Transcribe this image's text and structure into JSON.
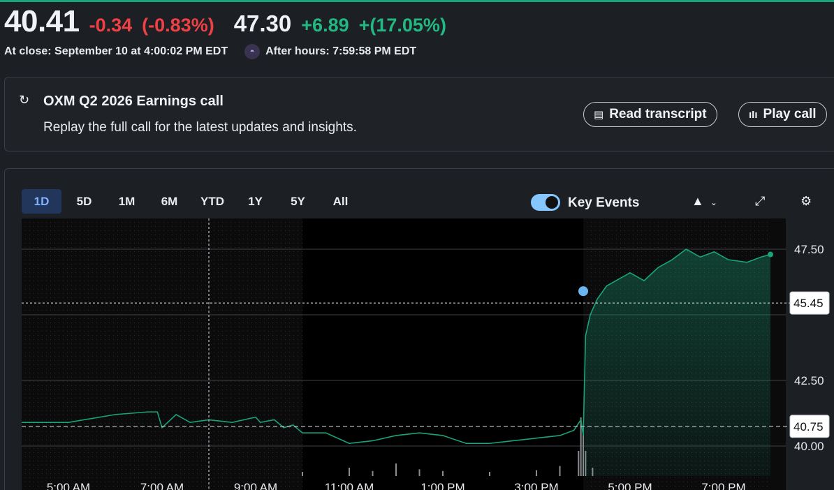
{
  "quote": {
    "price": "40.41",
    "change": "-0.34",
    "change_pct": "(-0.83%)",
    "after_hours_price": "47.30",
    "after_hours_change": "+6.89",
    "after_hours_change_pct": "+(17.05%)",
    "close_label": "At close: September 10 at 4:00:02 PM EDT",
    "after_hours_label": "After hours: 7:59:58 PM EDT"
  },
  "earnings_card": {
    "title": "OXM Q2 2026 Earnings call",
    "subtitle": "Replay the full call for the latest updates and insights.",
    "read_transcript": "Read transcript",
    "play_call": "Play call"
  },
  "toolbar": {
    "ranges": [
      "1D",
      "5D",
      "1M",
      "6M",
      "YTD",
      "1Y",
      "5Y",
      "All"
    ],
    "active_range": "1D",
    "key_events_label": "Key Events",
    "key_events_on": true
  },
  "colors": {
    "up": "#21b881",
    "down": "#ef4044",
    "line": "#1aa37a",
    "accent": "#7fb2ff"
  },
  "chart_data": {
    "type": "line",
    "x_ticks": [
      "5:00 AM",
      "7:00 AM",
      "9:00 AM",
      "11:00 AM",
      "1:00 PM",
      "3:00 PM",
      "5:00 PM",
      "7:00 PM"
    ],
    "y_ticks": [
      "47.50",
      "42.50",
      "40.00"
    ],
    "y_range": [
      39.0,
      48.5
    ],
    "prev_close_label": "40.75",
    "crosshair_label": "45.45",
    "series": [
      {
        "values": [
          [
            4.0,
            40.9
          ],
          [
            5.0,
            40.9
          ],
          [
            6.0,
            41.2
          ],
          [
            6.7,
            41.3
          ],
          [
            6.9,
            41.3
          ],
          [
            7.0,
            40.7
          ],
          [
            7.3,
            41.2
          ],
          [
            7.6,
            40.9
          ],
          [
            8.0,
            41.0
          ],
          [
            8.5,
            40.9
          ],
          [
            9.0,
            41.1
          ],
          [
            9.1,
            40.9
          ],
          [
            9.4,
            41.0
          ],
          [
            9.6,
            40.7
          ],
          [
            9.8,
            40.8
          ],
          [
            10.0,
            40.5
          ],
          [
            10.5,
            40.5
          ],
          [
            11.0,
            40.1
          ],
          [
            11.5,
            40.2
          ],
          [
            12.0,
            40.4
          ],
          [
            12.5,
            40.5
          ],
          [
            13.0,
            40.4
          ],
          [
            13.5,
            40.1
          ],
          [
            14.0,
            40.1
          ],
          [
            14.5,
            40.2
          ],
          [
            15.0,
            40.3
          ],
          [
            15.5,
            40.4
          ],
          [
            15.8,
            40.6
          ],
          [
            15.95,
            41.0
          ],
          [
            16.0,
            40.4
          ],
          [
            16.05,
            44.2
          ],
          [
            16.15,
            45.0
          ],
          [
            16.3,
            45.6
          ],
          [
            16.5,
            46.1
          ],
          [
            16.8,
            46.4
          ],
          [
            17.0,
            46.6
          ],
          [
            17.3,
            46.3
          ],
          [
            17.6,
            46.8
          ],
          [
            17.9,
            47.1
          ],
          [
            18.2,
            47.5
          ],
          [
            18.5,
            47.2
          ],
          [
            18.8,
            47.4
          ],
          [
            19.1,
            47.1
          ],
          [
            19.5,
            47.0
          ],
          [
            19.8,
            47.2
          ],
          [
            20.0,
            47.3
          ]
        ]
      }
    ],
    "volume": [
      [
        10.0,
        0.05
      ],
      [
        11.0,
        0.1
      ],
      [
        11.5,
        0.06
      ],
      [
        12.0,
        0.15
      ],
      [
        12.5,
        0.08
      ],
      [
        13.0,
        0.06
      ],
      [
        14.0,
        0.05
      ],
      [
        15.0,
        0.07
      ],
      [
        15.5,
        0.12
      ],
      [
        15.9,
        0.3
      ],
      [
        15.95,
        0.7
      ],
      [
        16.0,
        0.5
      ],
      [
        16.05,
        0.3
      ],
      [
        16.2,
        0.1
      ]
    ]
  }
}
